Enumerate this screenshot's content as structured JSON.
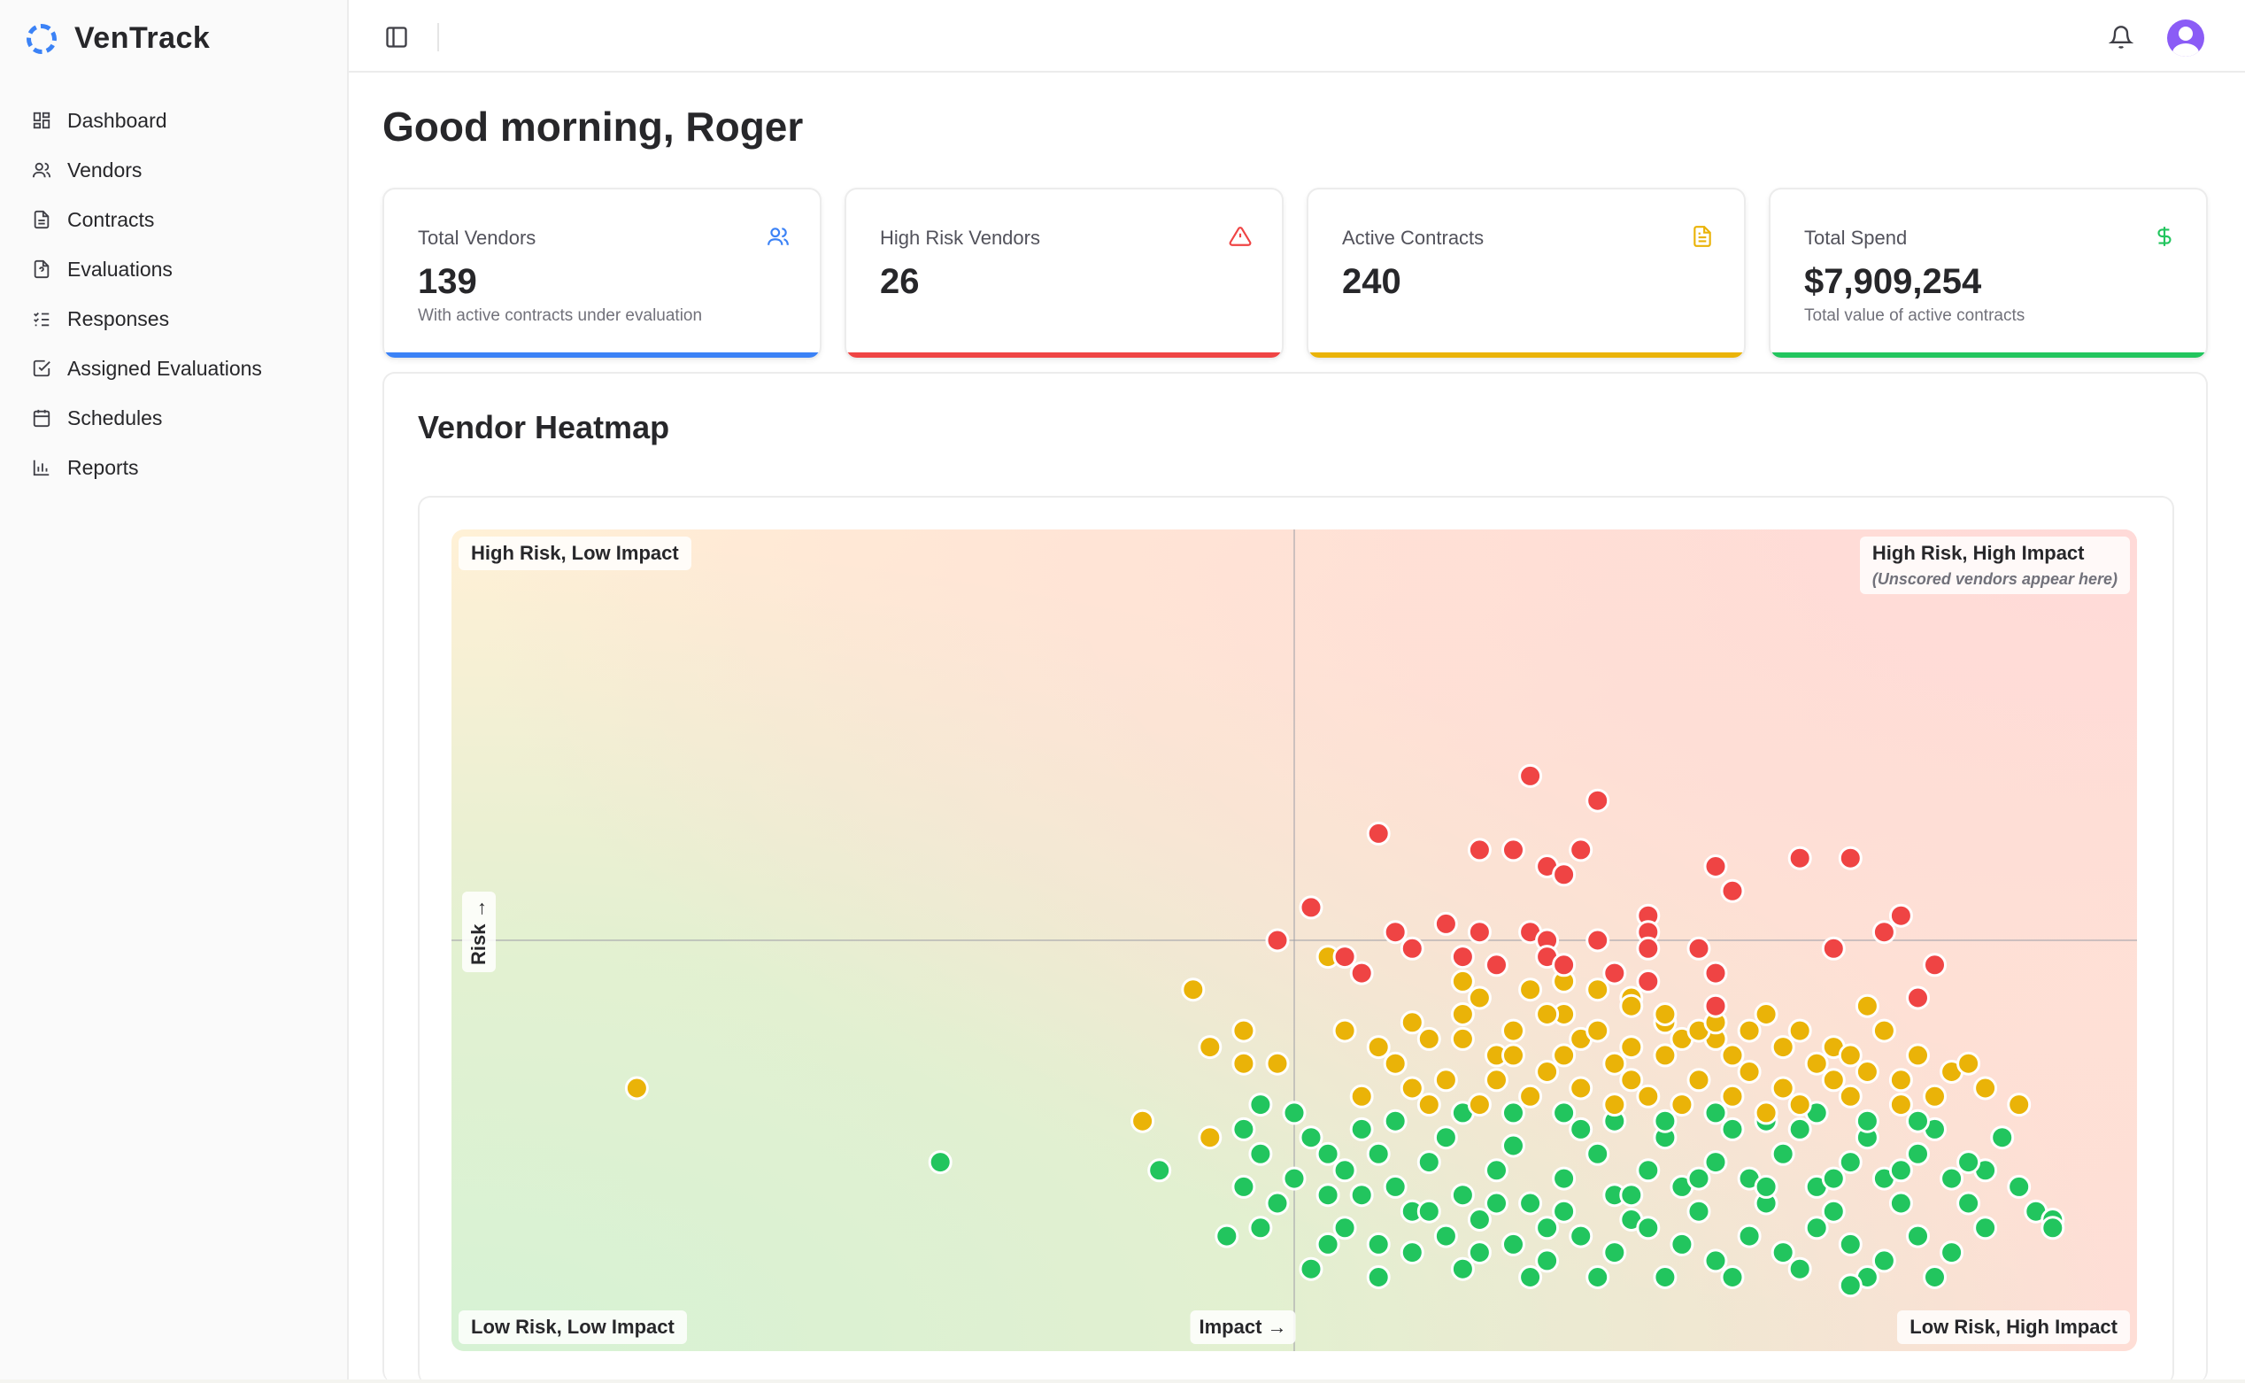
{
  "app": {
    "name": "VenTrack"
  },
  "sidebar": {
    "items": [
      {
        "label": "Dashboard",
        "icon": "dashboard-icon"
      },
      {
        "label": "Vendors",
        "icon": "users-icon"
      },
      {
        "label": "Contracts",
        "icon": "file-icon"
      },
      {
        "label": "Evaluations",
        "icon": "file-question-icon"
      },
      {
        "label": "Responses",
        "icon": "list-checks-icon"
      },
      {
        "label": "Assigned Evaluations",
        "icon": "square-check-icon"
      },
      {
        "label": "Schedules",
        "icon": "calendar-icon"
      },
      {
        "label": "Reports",
        "icon": "bar-chart-icon"
      }
    ]
  },
  "header": {
    "toggle_icon": "sidebar-toggle-icon",
    "bell_icon": "bell-icon",
    "avatar_icon": "user-avatar-icon"
  },
  "main": {
    "greeting": "Good morning, Roger",
    "cards": [
      {
        "label": "Total Vendors",
        "value": "139",
        "sub": "With active contracts under evaluation",
        "icon": "users-icon",
        "color": "#3b82f6"
      },
      {
        "label": "High Risk Vendors",
        "value": "26",
        "sub": "",
        "icon": "alert-triangle-icon",
        "color": "#ef4444"
      },
      {
        "label": "Active Contracts",
        "value": "240",
        "sub": "",
        "icon": "file-text-icon",
        "color": "#eab308"
      },
      {
        "label": "Total Spend",
        "value": "$7,909,254",
        "sub": "Total value of active contracts",
        "icon": "dollar-icon",
        "color": "#22c55e"
      }
    ],
    "heatmap": {
      "title": "Vendor Heatmap",
      "quadrants": {
        "top_left": "High Risk, Low Impact",
        "top_right": "High Risk, High Impact",
        "top_right_note": "(Unscored vendors appear here)",
        "bottom_left": "Low Risk, Low Impact",
        "bottom_right": "Low Risk, High Impact"
      },
      "x_axis_label": "Impact →",
      "y_axis_label": "Risk →",
      "colors": {
        "high": "#ef4444",
        "medium": "#eab308",
        "low": "#22c55e"
      }
    }
  },
  "chart_data": {
    "type": "scatter",
    "title": "Vendor Heatmap",
    "xlabel": "Impact →",
    "ylabel": "Risk →",
    "xlim": [
      0,
      1
    ],
    "ylim": [
      0,
      1
    ],
    "grid": false,
    "series": [
      {
        "name": "",
        "color": "#ef4444",
        "points": [
          [
            0.64,
            0.7
          ],
          [
            0.68,
            0.67
          ],
          [
            0.55,
            0.63
          ],
          [
            0.61,
            0.61
          ],
          [
            0.63,
            0.61
          ],
          [
            0.67,
            0.61
          ],
          [
            0.65,
            0.59
          ],
          [
            0.66,
            0.58
          ],
          [
            0.8,
            0.6
          ],
          [
            0.83,
            0.6
          ],
          [
            0.75,
            0.59
          ],
          [
            0.76,
            0.56
          ],
          [
            0.51,
            0.54
          ],
          [
            0.86,
            0.53
          ],
          [
            0.71,
            0.53
          ],
          [
            0.71,
            0.51
          ],
          [
            0.49,
            0.5
          ],
          [
            0.56,
            0.51
          ],
          [
            0.59,
            0.52
          ],
          [
            0.61,
            0.51
          ],
          [
            0.64,
            0.51
          ],
          [
            0.65,
            0.5
          ],
          [
            0.68,
            0.5
          ],
          [
            0.71,
            0.49
          ],
          [
            0.74,
            0.49
          ],
          [
            0.82,
            0.49
          ],
          [
            0.85,
            0.51
          ],
          [
            0.53,
            0.48
          ],
          [
            0.6,
            0.48
          ],
          [
            0.65,
            0.48
          ],
          [
            0.75,
            0.46
          ],
          [
            0.88,
            0.47
          ],
          [
            0.54,
            0.46
          ],
          [
            0.66,
            0.47
          ],
          [
            0.69,
            0.46
          ],
          [
            0.75,
            0.42
          ],
          [
            0.87,
            0.43
          ],
          [
            0.71,
            0.45
          ],
          [
            0.57,
            0.49
          ],
          [
            0.62,
            0.47
          ]
        ]
      },
      {
        "name": "",
        "color": "#eab308",
        "points": [
          [
            0.11,
            0.32
          ],
          [
            0.44,
            0.44
          ],
          [
            0.47,
            0.39
          ],
          [
            0.52,
            0.48
          ],
          [
            0.45,
            0.37
          ],
          [
            0.47,
            0.35
          ],
          [
            0.49,
            0.35
          ],
          [
            0.45,
            0.26
          ],
          [
            0.41,
            0.28
          ],
          [
            0.53,
            0.39
          ],
          [
            0.55,
            0.37
          ],
          [
            0.58,
            0.38
          ],
          [
            0.6,
            0.41
          ],
          [
            0.63,
            0.39
          ],
          [
            0.66,
            0.41
          ],
          [
            0.68,
            0.44
          ],
          [
            0.7,
            0.43
          ],
          [
            0.72,
            0.4
          ],
          [
            0.75,
            0.38
          ],
          [
            0.78,
            0.41
          ],
          [
            0.8,
            0.39
          ],
          [
            0.82,
            0.37
          ],
          [
            0.84,
            0.42
          ],
          [
            0.85,
            0.39
          ],
          [
            0.87,
            0.36
          ],
          [
            0.89,
            0.34
          ],
          [
            0.91,
            0.32
          ],
          [
            0.93,
            0.3
          ],
          [
            0.56,
            0.35
          ],
          [
            0.59,
            0.33
          ],
          [
            0.62,
            0.36
          ],
          [
            0.65,
            0.34
          ],
          [
            0.69,
            0.35
          ],
          [
            0.72,
            0.36
          ],
          [
            0.74,
            0.33
          ],
          [
            0.77,
            0.34
          ],
          [
            0.79,
            0.32
          ],
          [
            0.81,
            0.35
          ],
          [
            0.83,
            0.31
          ],
          [
            0.86,
            0.33
          ],
          [
            0.88,
            0.31
          ],
          [
            0.61,
            0.3
          ],
          [
            0.64,
            0.31
          ],
          [
            0.67,
            0.32
          ],
          [
            0.7,
            0.33
          ],
          [
            0.73,
            0.3
          ],
          [
            0.76,
            0.31
          ],
          [
            0.78,
            0.29
          ],
          [
            0.8,
            0.3
          ],
          [
            0.57,
            0.4
          ],
          [
            0.61,
            0.43
          ],
          [
            0.64,
            0.44
          ],
          [
            0.67,
            0.38
          ],
          [
            0.7,
            0.37
          ],
          [
            0.73,
            0.38
          ],
          [
            0.76,
            0.36
          ],
          [
            0.79,
            0.37
          ],
          [
            0.82,
            0.33
          ],
          [
            0.84,
            0.34
          ],
          [
            0.86,
            0.3
          ],
          [
            0.54,
            0.31
          ],
          [
            0.58,
            0.3
          ],
          [
            0.6,
            0.38
          ],
          [
            0.63,
            0.36
          ],
          [
            0.66,
            0.36
          ],
          [
            0.69,
            0.3
          ],
          [
            0.71,
            0.31
          ],
          [
            0.74,
            0.39
          ],
          [
            0.77,
            0.39
          ],
          [
            0.57,
            0.32
          ],
          [
            0.62,
            0.33
          ],
          [
            0.68,
            0.39
          ],
          [
            0.72,
            0.41
          ],
          [
            0.75,
            0.4
          ],
          [
            0.83,
            0.36
          ],
          [
            0.9,
            0.35
          ],
          [
            0.65,
            0.41
          ],
          [
            0.6,
            0.45
          ],
          [
            0.66,
            0.45
          ],
          [
            0.7,
            0.42
          ]
        ]
      },
      {
        "name": "",
        "color": "#22c55e",
        "points": [
          [
            0.29,
            0.23
          ],
          [
            0.42,
            0.22
          ],
          [
            0.48,
            0.3
          ],
          [
            0.47,
            0.27
          ],
          [
            0.48,
            0.24
          ],
          [
            0.5,
            0.29
          ],
          [
            0.51,
            0.26
          ],
          [
            0.52,
            0.24
          ],
          [
            0.5,
            0.21
          ],
          [
            0.49,
            0.18
          ],
          [
            0.47,
            0.2
          ],
          [
            0.48,
            0.15
          ],
          [
            0.52,
            0.19
          ],
          [
            0.53,
            0.22
          ],
          [
            0.54,
            0.27
          ],
          [
            0.55,
            0.24
          ],
          [
            0.56,
            0.2
          ],
          [
            0.57,
            0.17
          ],
          [
            0.58,
            0.23
          ],
          [
            0.59,
            0.26
          ],
          [
            0.6,
            0.19
          ],
          [
            0.61,
            0.16
          ],
          [
            0.62,
            0.22
          ],
          [
            0.63,
            0.25
          ],
          [
            0.64,
            0.18
          ],
          [
            0.65,
            0.15
          ],
          [
            0.66,
            0.21
          ],
          [
            0.67,
            0.27
          ],
          [
            0.68,
            0.24
          ],
          [
            0.69,
            0.19
          ],
          [
            0.7,
            0.16
          ],
          [
            0.71,
            0.22
          ],
          [
            0.72,
            0.26
          ],
          [
            0.73,
            0.2
          ],
          [
            0.74,
            0.17
          ],
          [
            0.75,
            0.23
          ],
          [
            0.76,
            0.27
          ],
          [
            0.77,
            0.21
          ],
          [
            0.78,
            0.18
          ],
          [
            0.79,
            0.24
          ],
          [
            0.8,
            0.27
          ],
          [
            0.81,
            0.2
          ],
          [
            0.82,
            0.17
          ],
          [
            0.83,
            0.23
          ],
          [
            0.84,
            0.26
          ],
          [
            0.85,
            0.21
          ],
          [
            0.86,
            0.18
          ],
          [
            0.87,
            0.24
          ],
          [
            0.88,
            0.27
          ],
          [
            0.89,
            0.21
          ],
          [
            0.9,
            0.18
          ],
          [
            0.91,
            0.22
          ],
          [
            0.92,
            0.26
          ],
          [
            0.93,
            0.2
          ],
          [
            0.94,
            0.17
          ],
          [
            0.95,
            0.16
          ],
          [
            0.95,
            0.15
          ],
          [
            0.53,
            0.15
          ],
          [
            0.55,
            0.13
          ],
          [
            0.57,
            0.12
          ],
          [
            0.59,
            0.14
          ],
          [
            0.61,
            0.12
          ],
          [
            0.63,
            0.13
          ],
          [
            0.65,
            0.11
          ],
          [
            0.67,
            0.14
          ],
          [
            0.69,
            0.12
          ],
          [
            0.71,
            0.15
          ],
          [
            0.73,
            0.13
          ],
          [
            0.75,
            0.11
          ],
          [
            0.77,
            0.14
          ],
          [
            0.79,
            0.12
          ],
          [
            0.81,
            0.15
          ],
          [
            0.83,
            0.13
          ],
          [
            0.85,
            0.11
          ],
          [
            0.87,
            0.14
          ],
          [
            0.89,
            0.12
          ],
          [
            0.91,
            0.15
          ],
          [
            0.6,
            0.29
          ],
          [
            0.63,
            0.29
          ],
          [
            0.66,
            0.29
          ],
          [
            0.69,
            0.28
          ],
          [
            0.72,
            0.28
          ],
          [
            0.75,
            0.29
          ],
          [
            0.78,
            0.28
          ],
          [
            0.81,
            0.29
          ],
          [
            0.84,
            0.28
          ],
          [
            0.87,
            0.28
          ],
          [
            0.56,
            0.28
          ],
          [
            0.54,
            0.19
          ],
          [
            0.58,
            0.17
          ],
          [
            0.62,
            0.18
          ],
          [
            0.66,
            0.17
          ],
          [
            0.7,
            0.19
          ],
          [
            0.74,
            0.21
          ],
          [
            0.78,
            0.2
          ],
          [
            0.82,
            0.21
          ],
          [
            0.86,
            0.22
          ],
          [
            0.9,
            0.23
          ],
          [
            0.46,
            0.14
          ],
          [
            0.55,
            0.09
          ],
          [
            0.6,
            0.1
          ],
          [
            0.64,
            0.09
          ],
          [
            0.68,
            0.09
          ],
          [
            0.72,
            0.09
          ],
          [
            0.8,
            0.1
          ],
          [
            0.84,
            0.09
          ],
          [
            0.88,
            0.09
          ],
          [
            0.83,
            0.08
          ],
          [
            0.76,
            0.09
          ],
          [
            0.51,
            0.1
          ],
          [
            0.52,
            0.13
          ]
        ]
      }
    ]
  }
}
